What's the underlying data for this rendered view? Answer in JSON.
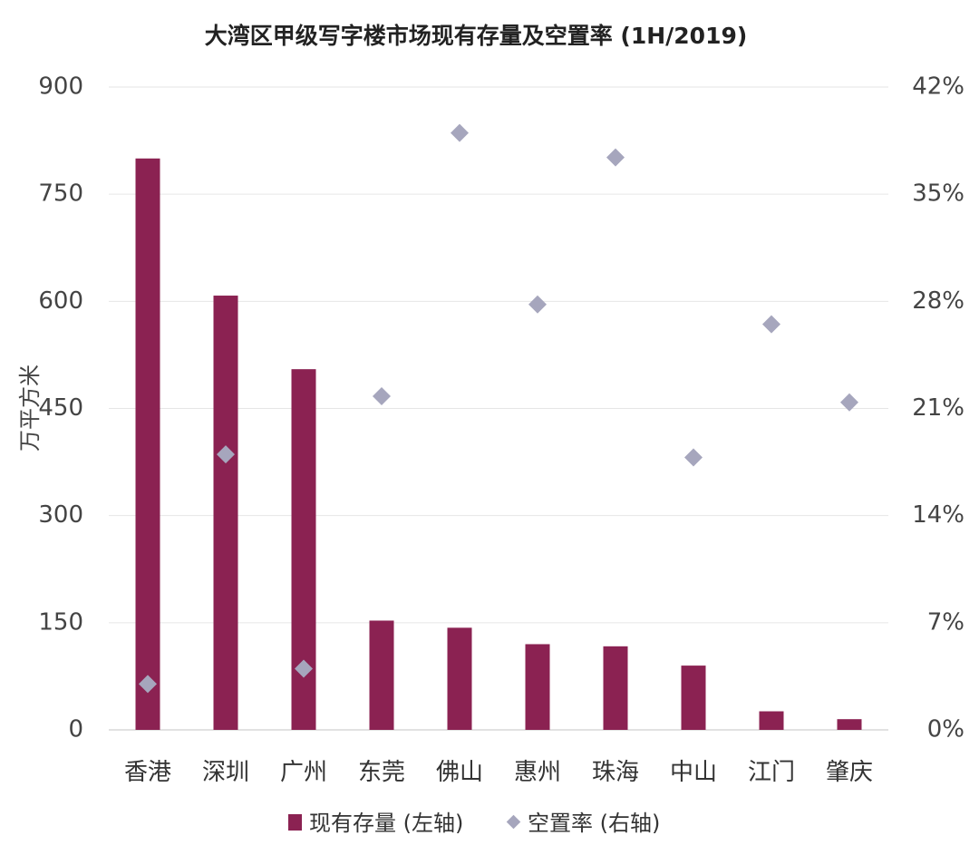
{
  "chart_data": {
    "type": "bar",
    "title": "大湾区甲级写字楼市场现有存量及空置率 (1H/2019)",
    "ylabel": "万平方米",
    "categories": [
      "香港",
      "深圳",
      "广州",
      "东莞",
      "佛山",
      "惠州",
      "珠海",
      "中山",
      "江门",
      "肇庆"
    ],
    "ylim": [
      0,
      900
    ],
    "y_ticks": [
      "0",
      "150",
      "300",
      "450",
      "600",
      "750",
      "900"
    ],
    "y2lim": [
      0,
      42
    ],
    "y2_ticks": [
      "0%",
      "7%",
      "14%",
      "21%",
      "28%",
      "35%",
      "42%"
    ],
    "grid": true,
    "legend_position": "bottom",
    "series": [
      {
        "name": "现有存量 (左轴)",
        "type": "bar",
        "axis": "left",
        "color": "#8b2252",
        "values": [
          800,
          608,
          505,
          153,
          143,
          120,
          117,
          90,
          26,
          15
        ]
      },
      {
        "name": "空置率 (右轴)",
        "type": "scatter",
        "axis": "right",
        "marker": "diamond",
        "color": "#a6a6bd",
        "values": [
          3.0,
          18.0,
          4.0,
          21.8,
          39.0,
          27.8,
          37.4,
          17.8,
          26.5,
          21.4
        ]
      }
    ]
  }
}
